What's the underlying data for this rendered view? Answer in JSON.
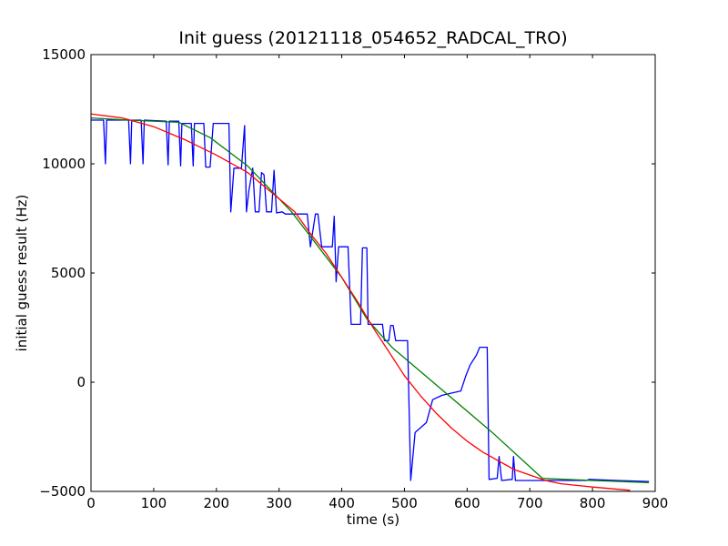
{
  "chart_data": {
    "type": "line",
    "title": "Init guess (20121118_054652_RADCAL_TRO)",
    "xlabel": "time (s)",
    "ylabel": "initial guess result (Hz)",
    "xlim": [
      0,
      900
    ],
    "ylim": [
      -5000,
      15000
    ],
    "xticks": [
      0,
      100,
      200,
      300,
      400,
      500,
      600,
      700,
      800,
      900
    ],
    "yticks": [
      -5000,
      0,
      5000,
      10000,
      15000
    ],
    "xtick_labels": [
      "0",
      "100",
      "200",
      "300",
      "400",
      "500",
      "600",
      "700",
      "800",
      "900"
    ],
    "ytick_labels": [
      "−5000",
      "0",
      "5000",
      "10000",
      "15000"
    ],
    "grid": false,
    "legend": false,
    "series": [
      {
        "color": "#0000ff",
        "points": [
          [
            0,
            12000
          ],
          [
            20,
            12000
          ],
          [
            23,
            10000
          ],
          [
            25,
            12000
          ],
          [
            60,
            12000
          ],
          [
            63,
            10000
          ],
          [
            65,
            12000
          ],
          [
            80,
            12000
          ],
          [
            83,
            10000
          ],
          [
            85,
            12000
          ],
          [
            120,
            11950
          ],
          [
            123,
            9950
          ],
          [
            125,
            11950
          ],
          [
            140,
            11950
          ],
          [
            143,
            9900
          ],
          [
            145,
            11850
          ],
          [
            160,
            11850
          ],
          [
            163,
            9900
          ],
          [
            165,
            11850
          ],
          [
            180,
            11850
          ],
          [
            183,
            9850
          ],
          [
            190,
            9850
          ],
          [
            195,
            11850
          ],
          [
            220,
            11850
          ],
          [
            223,
            7800
          ],
          [
            228,
            9800
          ],
          [
            240,
            9800
          ],
          [
            245,
            11750
          ],
          [
            248,
            7800
          ],
          [
            252,
            8800
          ],
          [
            258,
            9800
          ],
          [
            262,
            7800
          ],
          [
            268,
            7800
          ],
          [
            272,
            9600
          ],
          [
            276,
            9500
          ],
          [
            280,
            7800
          ],
          [
            288,
            7800
          ],
          [
            292,
            9700
          ],
          [
            296,
            7750
          ],
          [
            305,
            7800
          ],
          [
            310,
            7700
          ],
          [
            345,
            7700
          ],
          [
            350,
            6200
          ],
          [
            358,
            7700
          ],
          [
            362,
            7700
          ],
          [
            368,
            6200
          ],
          [
            385,
            6200
          ],
          [
            388,
            7600
          ],
          [
            391,
            4600
          ],
          [
            395,
            6200
          ],
          [
            410,
            6200
          ],
          [
            415,
            2650
          ],
          [
            430,
            2650
          ],
          [
            433,
            6150
          ],
          [
            440,
            6150
          ],
          [
            442,
            2650
          ],
          [
            465,
            2650
          ],
          [
            468,
            1900
          ],
          [
            475,
            1900
          ],
          [
            478,
            2600
          ],
          [
            482,
            2600
          ],
          [
            486,
            1900
          ],
          [
            505,
            1900
          ],
          [
            510,
            -4500
          ],
          [
            517,
            -2300
          ],
          [
            535,
            -1850
          ],
          [
            545,
            -800
          ],
          [
            560,
            -600
          ],
          [
            590,
            -400
          ],
          [
            598,
            300
          ],
          [
            605,
            800
          ],
          [
            615,
            1250
          ],
          [
            620,
            1600
          ],
          [
            632,
            1600
          ],
          [
            635,
            -4450
          ],
          [
            648,
            -4400
          ],
          [
            651,
            -3400
          ],
          [
            655,
            -4500
          ],
          [
            672,
            -4450
          ],
          [
            674,
            -3400
          ],
          [
            677,
            -4500
          ],
          [
            720,
            -4500
          ],
          [
            790,
            -4500
          ],
          [
            795,
            -4450
          ],
          [
            840,
            -4500
          ],
          [
            890,
            -4550
          ]
        ]
      },
      {
        "color": "#008000",
        "points": [
          [
            0,
            12100
          ],
          [
            60,
            12000
          ],
          [
            140,
            11900
          ],
          [
            190,
            11200
          ],
          [
            250,
            9900
          ],
          [
            320,
            7800
          ],
          [
            400,
            4800
          ],
          [
            440,
            2900
          ],
          [
            480,
            1600
          ],
          [
            640,
            -2300
          ],
          [
            720,
            -4400
          ],
          [
            800,
            -4500
          ],
          [
            890,
            -4600
          ]
        ]
      },
      {
        "color": "#ff0000",
        "points": [
          [
            0,
            12280
          ],
          [
            50,
            12100
          ],
          [
            100,
            11700
          ],
          [
            150,
            11100
          ],
          [
            200,
            10400
          ],
          [
            250,
            9600
          ],
          [
            300,
            8400
          ],
          [
            325,
            7800
          ],
          [
            350,
            6800
          ],
          [
            375,
            5900
          ],
          [
            400,
            4800
          ],
          [
            425,
            3700
          ],
          [
            450,
            2500
          ],
          [
            475,
            1400
          ],
          [
            500,
            300
          ],
          [
            525,
            -600
          ],
          [
            550,
            -1400
          ],
          [
            575,
            -2100
          ],
          [
            600,
            -2700
          ],
          [
            625,
            -3200
          ],
          [
            650,
            -3600
          ],
          [
            675,
            -4000
          ],
          [
            700,
            -4250
          ],
          [
            725,
            -4500
          ],
          [
            750,
            -4650
          ],
          [
            800,
            -4800
          ],
          [
            860,
            -4950
          ]
        ]
      }
    ]
  }
}
